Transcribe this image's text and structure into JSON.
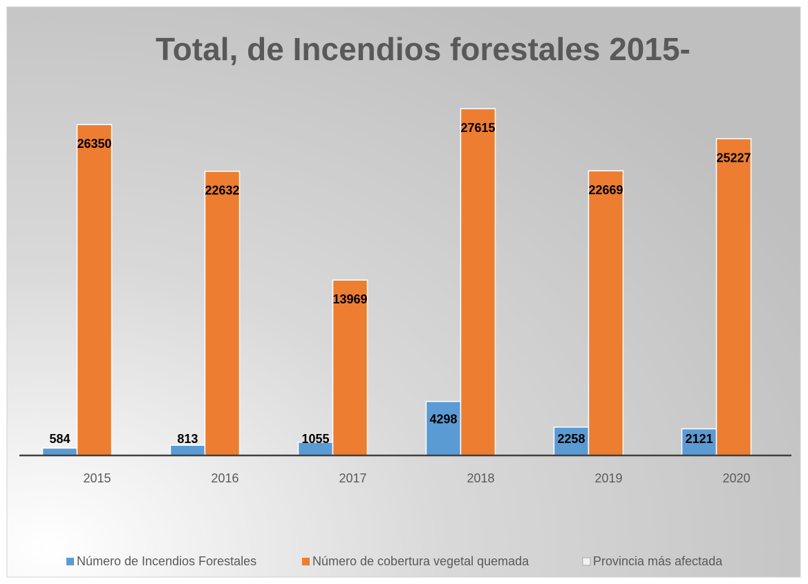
{
  "chart_data": {
    "type": "bar",
    "title": "Total, de Incendios forestales 2015-",
    "categories": [
      "2015",
      "2016",
      "2017",
      "2018",
      "2019",
      "2020"
    ],
    "series": [
      {
        "name": "Número de Incendios Forestales",
        "color": "#5b9bd5",
        "values": [
          584,
          813,
          1055,
          4298,
          2258,
          2121
        ]
      },
      {
        "name": "Número de cobertura vegetal quemada",
        "color": "#ed7d31",
        "values": [
          26350,
          22632,
          13969,
          27615,
          22669,
          25227
        ]
      },
      {
        "name": "Provincia más afectada",
        "color": "#f2f2f2",
        "values": [
          null,
          null,
          null,
          null,
          null,
          null
        ]
      }
    ],
    "ylim": [
      0,
      30000
    ],
    "legend": "bottom"
  }
}
